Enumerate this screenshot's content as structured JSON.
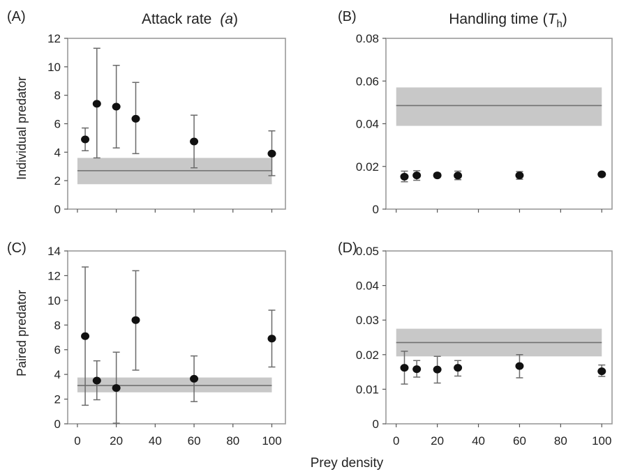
{
  "figure": {
    "col_titles": [
      {
        "text": "Attack rate",
        "symbol": "a"
      },
      {
        "text": "Handling time",
        "symbol": "T",
        "subscript": "h"
      }
    ],
    "row_labels": [
      "Individual predator",
      "Paired predator"
    ],
    "xlabel": "Prey density"
  },
  "chart_data": [
    {
      "panel": "(A)",
      "type": "scatter",
      "xlim": [
        -5,
        107
      ],
      "ylim": [
        0,
        12
      ],
      "xticks": [
        0,
        20,
        40,
        60,
        80,
        100
      ],
      "show_xticklabels": false,
      "yticks": [
        0,
        2,
        4,
        6,
        8,
        10,
        12
      ],
      "yticklabels": [
        "0",
        "2",
        "4",
        "6",
        "8",
        "10",
        "12"
      ],
      "band": {
        "lower": 1.75,
        "upper": 3.6,
        "line": 2.7
      },
      "points": [
        {
          "x": 4,
          "y": 4.9,
          "lo": 4.1,
          "hi": 5.7
        },
        {
          "x": 10,
          "y": 7.4,
          "lo": 3.6,
          "hi": 11.3
        },
        {
          "x": 20,
          "y": 7.2,
          "lo": 4.3,
          "hi": 10.1
        },
        {
          "x": 30,
          "y": 6.35,
          "lo": 3.9,
          "hi": 8.9
        },
        {
          "x": 60,
          "y": 4.75,
          "lo": 2.9,
          "hi": 6.6
        },
        {
          "x": 100,
          "y": 3.9,
          "lo": 2.35,
          "hi": 5.5
        }
      ]
    },
    {
      "panel": "(B)",
      "type": "scatter",
      "xlim": [
        -5,
        105
      ],
      "ylim": [
        0,
        0.08
      ],
      "xticks": [
        0,
        20,
        40,
        60,
        80,
        100
      ],
      "show_xticklabels": false,
      "yticks": [
        0,
        0.02,
        0.04,
        0.06,
        0.08
      ],
      "yticklabels": [
        "0",
        "0.02",
        "0.04",
        "0.06",
        "0.08"
      ],
      "band": {
        "lower": 0.039,
        "upper": 0.057,
        "line": 0.0485
      },
      "points": [
        {
          "x": 4,
          "y": 0.0152,
          "lo": 0.0128,
          "hi": 0.0178
        },
        {
          "x": 10,
          "y": 0.0158,
          "lo": 0.0135,
          "hi": 0.018
        },
        {
          "x": 20,
          "y": 0.0158,
          "lo": 0.015,
          "hi": 0.0168
        },
        {
          "x": 30,
          "y": 0.0157,
          "lo": 0.0138,
          "hi": 0.0178
        },
        {
          "x": 60,
          "y": 0.0158,
          "lo": 0.014,
          "hi": 0.0176
        },
        {
          "x": 100,
          "y": 0.0163,
          "lo": 0.0155,
          "hi": 0.017
        }
      ]
    },
    {
      "panel": "(C)",
      "type": "scatter",
      "xlim": [
        -5,
        107
      ],
      "ylim": [
        0,
        14
      ],
      "xticks": [
        0,
        20,
        40,
        60,
        80,
        100
      ],
      "show_xticklabels": true,
      "xticklabels": [
        "0",
        "20",
        "40",
        "60",
        "80",
        "100"
      ],
      "yticks": [
        0,
        2,
        4,
        6,
        8,
        10,
        12,
        14
      ],
      "yticklabels": [
        "0",
        "2",
        "4",
        "6",
        "8",
        "10",
        "12",
        "14"
      ],
      "band": {
        "lower": 2.55,
        "upper": 3.75,
        "line": 3.1
      },
      "points": [
        {
          "x": 4,
          "y": 7.1,
          "lo": 1.5,
          "hi": 12.7
        },
        {
          "x": 10,
          "y": 3.5,
          "lo": 1.95,
          "hi": 5.1
        },
        {
          "x": 20,
          "y": 2.9,
          "lo": 0.05,
          "hi": 5.8
        },
        {
          "x": 30,
          "y": 8.4,
          "lo": 4.35,
          "hi": 12.4
        },
        {
          "x": 60,
          "y": 3.65,
          "lo": 1.8,
          "hi": 5.5
        },
        {
          "x": 100,
          "y": 6.9,
          "lo": 4.6,
          "hi": 9.2
        }
      ]
    },
    {
      "panel": "(D)",
      "type": "scatter",
      "xlim": [
        -5,
        105
      ],
      "ylim": [
        0,
        0.05
      ],
      "xticks": [
        0,
        20,
        40,
        60,
        80,
        100
      ],
      "show_xticklabels": true,
      "xticklabels": [
        "0",
        "20",
        "40",
        "60",
        "80",
        "100"
      ],
      "yticks": [
        0,
        0.01,
        0.02,
        0.03,
        0.04,
        0.05
      ],
      "yticklabels": [
        "0",
        "0.01",
        "0.02",
        "0.03",
        "0.04",
        "0.05"
      ],
      "band": {
        "lower": 0.0195,
        "upper": 0.0275,
        "line": 0.0235
      },
      "points": [
        {
          "x": 4,
          "y": 0.0162,
          "lo": 0.0115,
          "hi": 0.021
        },
        {
          "x": 10,
          "y": 0.0158,
          "lo": 0.0135,
          "hi": 0.0183
        },
        {
          "x": 20,
          "y": 0.0157,
          "lo": 0.0118,
          "hi": 0.0195
        },
        {
          "x": 30,
          "y": 0.0162,
          "lo": 0.0138,
          "hi": 0.0183
        },
        {
          "x": 60,
          "y": 0.0167,
          "lo": 0.0133,
          "hi": 0.02
        },
        {
          "x": 100,
          "y": 0.0152,
          "lo": 0.0137,
          "hi": 0.017
        }
      ]
    }
  ]
}
